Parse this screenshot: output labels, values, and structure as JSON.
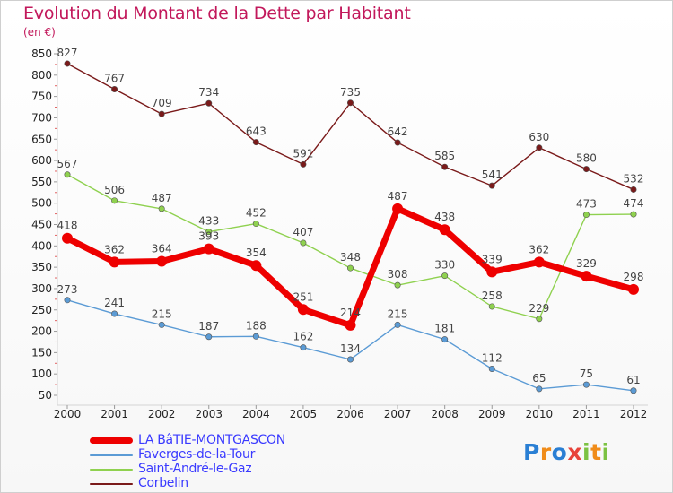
{
  "chart_data": {
    "type": "line",
    "title": "Evolution du Montant de la Dette par Habitant",
    "unit_label": "(en €)",
    "x": [
      "2000",
      "2001",
      "2002",
      "2003",
      "2004",
      "2005",
      "2006",
      "2007",
      "2008",
      "2009",
      "2010",
      "2011",
      "2012"
    ],
    "yticks": [
      "50",
      "100",
      "150",
      "200",
      "250",
      "300",
      "350",
      "400",
      "450",
      "500",
      "550",
      "600",
      "650",
      "700",
      "750",
      "800",
      "850"
    ],
    "ylim": [
      40,
      865
    ],
    "grid": false,
    "legend_position": "bottom-left",
    "series": [
      {
        "name": "Corbelin",
        "color": "#7a1a1a",
        "width": 1.4,
        "values": [
          827,
          767,
          709,
          734,
          643,
          591,
          735,
          642,
          585,
          541,
          630,
          580,
          532
        ]
      },
      {
        "name": "Saint-André-le-Gaz",
        "color": "#8fd14f",
        "width": 1.4,
        "values": [
          567,
          506,
          487,
          433,
          452,
          407,
          348,
          308,
          330,
          258,
          229,
          473,
          474
        ]
      },
      {
        "name": "Faverges-de-la-Tour",
        "color": "#5b9bd5",
        "width": 1.4,
        "values": [
          273,
          241,
          215,
          187,
          188,
          162,
          134,
          215,
          181,
          112,
          65,
          75,
          61
        ]
      },
      {
        "name": "LA BâTIE-MONTGASCON",
        "color": "#ee0000",
        "width": 7,
        "values": [
          418,
          362,
          364,
          393,
          354,
          251,
          214,
          487,
          438,
          339,
          362,
          329,
          298
        ]
      }
    ]
  },
  "legend": {
    "items": [
      {
        "label": "LA BâTIE-MONTGASCON",
        "color": "#ee0000"
      },
      {
        "label": "Faverges-de-la-Tour",
        "color": "#5b9bd5"
      },
      {
        "label": "Saint-André-le-Gaz",
        "color": "#8fd14f"
      },
      {
        "label": "Corbelin",
        "color": "#7a1a1a"
      }
    ]
  },
  "logo": {
    "letters": [
      "P",
      "r",
      "o",
      "x",
      "i",
      "t",
      "i"
    ],
    "colors": [
      "#2a7fd4",
      "#f08c1a",
      "#2a7fd4",
      "#e8433a",
      "#7cc242",
      "#f08c1a",
      "#7cc242"
    ]
  }
}
